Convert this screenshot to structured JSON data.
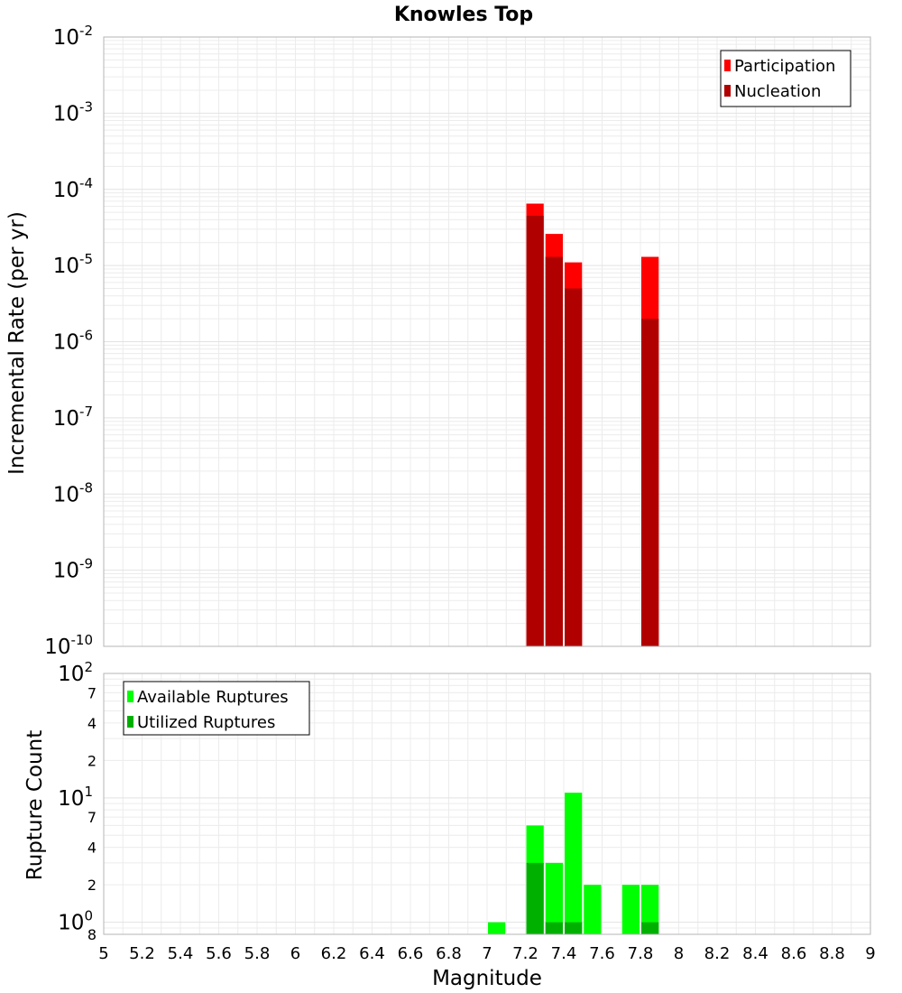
{
  "colors": {
    "participation": "#ff0000",
    "nucleation": "#b00000",
    "available": "#00ff00",
    "utilized": "#00b000"
  },
  "chart_data": [
    {
      "type": "bar",
      "title": "Knowles Top",
      "xlabel": "Magnitude",
      "ylabel": "Incremental Rate (per yr)",
      "yscale": "log",
      "xlim": [
        5,
        9
      ],
      "ylim": [
        1e-10,
        0.01
      ],
      "y_tick_exponents": [
        "-10",
        "-9",
        "-8",
        "-7",
        "-6",
        "-5",
        "-4",
        "-3",
        "-2"
      ],
      "y_tick_base": "10",
      "legend_position": "top-right",
      "grid": true,
      "bar_width": 0.1,
      "series": [
        {
          "name": "Participation",
          "color_key": "participation",
          "points": [
            {
              "x": 7.25,
              "y": 6.5e-05
            },
            {
              "x": 7.35,
              "y": 2.6e-05
            },
            {
              "x": 7.45,
              "y": 1.1e-05
            },
            {
              "x": 7.85,
              "y": 1.3e-05
            }
          ]
        },
        {
          "name": "Nucleation",
          "color_key": "nucleation",
          "points": [
            {
              "x": 7.25,
              "y": 4.5e-05
            },
            {
              "x": 7.35,
              "y": 1.3e-05
            },
            {
              "x": 7.45,
              "y": 5e-06
            },
            {
              "x": 7.85,
              "y": 2e-06
            }
          ]
        }
      ]
    },
    {
      "type": "bar",
      "xlabel": "Magnitude",
      "ylabel": "Rupture Count",
      "yscale": "log",
      "xlim": [
        5,
        9
      ],
      "ylim": [
        0.8,
        100
      ],
      "x_ticks": [
        "5",
        "5.2",
        "5.4",
        "5.6",
        "5.8",
        "6",
        "6.2",
        "6.4",
        "6.6",
        "6.8",
        "7",
        "7.2",
        "7.4",
        "7.6",
        "7.8",
        "8",
        "8.2",
        "8.4",
        "8.6",
        "8.8",
        "9"
      ],
      "y_major_ticks": [
        {
          "value": 1,
          "base": "10",
          "exp": "0"
        },
        {
          "value": 10,
          "base": "10",
          "exp": "1"
        },
        {
          "value": 100,
          "base": "10",
          "exp": "2"
        }
      ],
      "y_minor_ticks": [
        {
          "value": 2,
          "label": "2"
        },
        {
          "value": 4,
          "label": "4"
        },
        {
          "value": 7,
          "label": "7"
        },
        {
          "value": 20,
          "label": "2"
        },
        {
          "value": 40,
          "label": "4"
        },
        {
          "value": 70,
          "label": "7"
        }
      ],
      "y_bottom_label": "8",
      "legend_position": "top-left",
      "grid": true,
      "bar_width": 0.1,
      "series": [
        {
          "name": "Available Ruptures",
          "color_key": "available",
          "points": [
            {
              "x": 7.05,
              "y": 1
            },
            {
              "x": 7.25,
              "y": 6
            },
            {
              "x": 7.35,
              "y": 3
            },
            {
              "x": 7.45,
              "y": 11
            },
            {
              "x": 7.55,
              "y": 2
            },
            {
              "x": 7.75,
              "y": 2
            },
            {
              "x": 7.85,
              "y": 2
            }
          ]
        },
        {
          "name": "Utilized Ruptures",
          "color_key": "utilized",
          "points": [
            {
              "x": 7.25,
              "y": 3
            },
            {
              "x": 7.35,
              "y": 1
            },
            {
              "x": 7.45,
              "y": 1
            },
            {
              "x": 7.85,
              "y": 1
            }
          ]
        }
      ]
    }
  ]
}
